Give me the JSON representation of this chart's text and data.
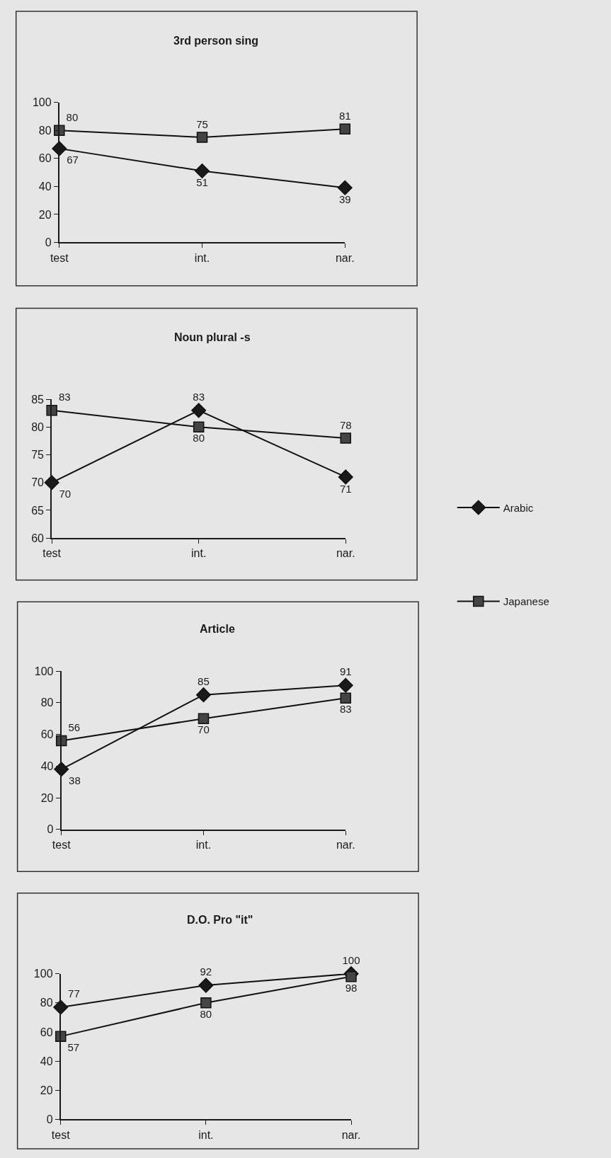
{
  "chart_data": [
    {
      "type": "line",
      "title": "3rd person sing",
      "categories": [
        "test",
        "int.",
        "nar."
      ],
      "ylim": [
        0,
        100
      ],
      "yticks": [
        0,
        20,
        40,
        60,
        80,
        100
      ],
      "data_labels": true,
      "grid": false,
      "legend": "right",
      "series": [
        {
          "name": "Arabic",
          "color": "#1a1a1a",
          "marker": "diamond",
          "values": [
            67,
            51,
            39
          ]
        },
        {
          "name": "Japanese",
          "color": "#444444",
          "marker": "square",
          "values": [
            80,
            75,
            81
          ]
        }
      ]
    },
    {
      "type": "line",
      "title": "Noun plural -s",
      "categories": [
        "test",
        "int.",
        "nar."
      ],
      "ylim": [
        60,
        85
      ],
      "yticks": [
        60,
        65,
        70,
        75,
        80,
        85
      ],
      "data_labels": true,
      "grid": false,
      "series": [
        {
          "color": "#1a1a1a",
          "marker": "diamond",
          "values": [
            70,
            83,
            71
          ]
        },
        {
          "color": "#444444",
          "marker": "square",
          "values": [
            83,
            80,
            78
          ]
        }
      ]
    },
    {
      "type": "line",
      "title": "Article",
      "categories": [
        "test",
        "int.",
        "nar."
      ],
      "ylim": [
        0,
        100
      ],
      "yticks": [
        0,
        20,
        40,
        60,
        80,
        100
      ],
      "data_labels": true,
      "grid": false,
      "series": [
        {
          "color": "#1a1a1a",
          "marker": "diamond",
          "values": [
            38,
            85,
            91
          ]
        },
        {
          "color": "#444444",
          "marker": "square",
          "values": [
            56,
            70,
            83
          ]
        }
      ]
    },
    {
      "type": "line",
      "title": "D.O. Pro \"it\"",
      "categories": [
        "test",
        "int.",
        "nar."
      ],
      "ylim": [
        0,
        100
      ],
      "yticks": [
        0,
        20,
        40,
        60,
        80,
        100
      ],
      "data_labels": true,
      "grid": false,
      "series": [
        {
          "color": "#1a1a1a",
          "marker": "diamond",
          "values": [
            77,
            92,
            100
          ]
        },
        {
          "color": "#444444",
          "marker": "square",
          "values": [
            57,
            80,
            98
          ]
        }
      ]
    }
  ]
}
